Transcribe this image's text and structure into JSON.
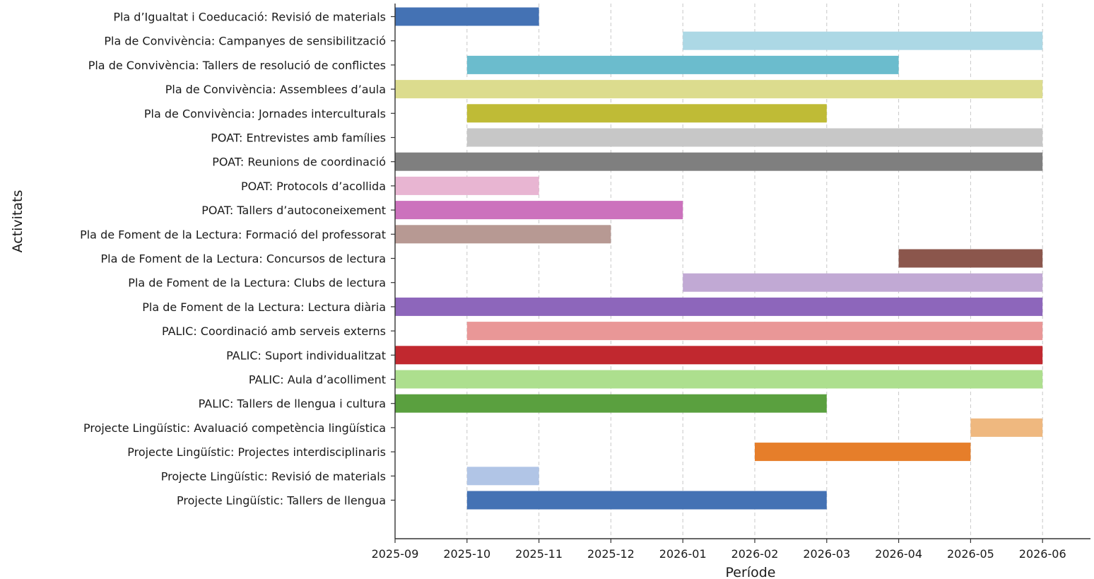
{
  "chart_data": {
    "type": "bar",
    "orientation": "horizontal-gantt",
    "xlabel": "Període",
    "ylabel": "Activitats",
    "x_ticks": [
      "2025-09",
      "2025-10",
      "2025-11",
      "2025-12",
      "2026-01",
      "2026-02",
      "2026-03",
      "2026-04",
      "2026-05",
      "2026-06"
    ],
    "xlim": [
      "2025-09",
      "2026-06"
    ],
    "grid": "vertical dashed",
    "categories": [
      {
        "label": "Pla d’Igualtat i Coeducació: Revisió de materials",
        "start": "2025-09",
        "end": "2025-11",
        "color": "#4472b4"
      },
      {
        "label": "Pla de Convivència: Campanyes de sensibilització",
        "start": "2026-01",
        "end": "2026-06",
        "color": "#acd8e5"
      },
      {
        "label": "Pla de Convivència: Tallers de resolució de conflictes",
        "start": "2025-10",
        "end": "2026-04",
        "color": "#6bbccd"
      },
      {
        "label": "Pla de Convivència: Assemblees d’aula",
        "start": "2025-09",
        "end": "2026-06",
        "color": "#dcdc8e"
      },
      {
        "label": "Pla de Convivència: Jornades interculturals",
        "start": "2025-10",
        "end": "2026-03",
        "color": "#bfbb36"
      },
      {
        "label": "POAT: Entrevistes amb famílies",
        "start": "2025-10",
        "end": "2026-06",
        "color": "#c7c7c7"
      },
      {
        "label": "POAT: Reunions de coordinació",
        "start": "2025-09",
        "end": "2026-06",
        "color": "#7f7f7f"
      },
      {
        "label": "POAT: Protocols d’acollida",
        "start": "2025-09",
        "end": "2025-11",
        "color": "#e8b5d2"
      },
      {
        "label": "POAT: Tallers d’autoconeixement",
        "start": "2025-09",
        "end": "2026-01",
        "color": "#cc72bd"
      },
      {
        "label": "Pla de Foment de la Lectura: Formació del professorat",
        "start": "2025-09",
        "end": "2025-12",
        "color": "#b79993"
      },
      {
        "label": "Pla de Foment de la Lectura: Concursos de lectura",
        "start": "2026-04",
        "end": "2026-06",
        "color": "#8b564c"
      },
      {
        "label": "Pla de Foment de la Lectura: Clubs de lectura",
        "start": "2026-01",
        "end": "2026-06",
        "color": "#c1a9d4"
      },
      {
        "label": "Pla de Foment de la Lectura: Lectura diària",
        "start": "2025-09",
        "end": "2026-06",
        "color": "#8d66bb"
      },
      {
        "label": "PALIC: Coordinació amb serveis externs",
        "start": "2025-10",
        "end": "2026-06",
        "color": "#e99797"
      },
      {
        "label": "PALIC: Suport individualitzat",
        "start": "2025-09",
        "end": "2026-06",
        "color": "#c1282f"
      },
      {
        "label": "PALIC: Aula d’acolliment",
        "start": "2025-09",
        "end": "2026-06",
        "color": "#addf8e"
      },
      {
        "label": "PALIC: Tallers de llengua i cultura",
        "start": "2025-09",
        "end": "2026-03",
        "color": "#5aa03f"
      },
      {
        "label": "Projecte Lingüístic: Avaluació competència lingüística",
        "start": "2026-05",
        "end": "2026-06",
        "color": "#efb87f"
      },
      {
        "label": "Projecte Lingüístic: Projectes interdisciplinaris",
        "start": "2026-02",
        "end": "2026-05",
        "color": "#e67e2a"
      },
      {
        "label": "Projecte Lingüístic: Revisió de materials",
        "start": "2025-10",
        "end": "2025-11",
        "color": "#b1c5e6"
      },
      {
        "label": "Projecte Lingüístic: Tallers de llengua",
        "start": "2025-10",
        "end": "2026-03",
        "color": "#4472b4"
      }
    ]
  }
}
